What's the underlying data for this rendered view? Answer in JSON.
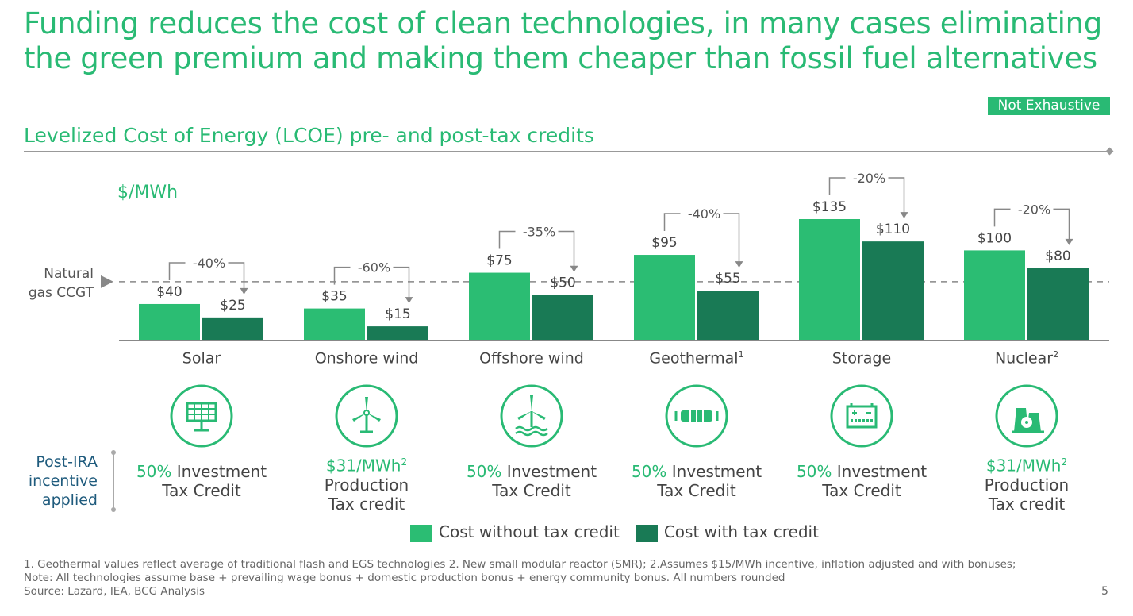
{
  "title": "Funding reduces the cost of clean technologies, in many cases eliminating the green premium and making them cheaper than fossil fuel alternatives",
  "badge": "Not Exhaustive",
  "subtitle": "Levelized Cost of Energy (LCOE) pre- and post-tax credits",
  "colors": {
    "accent": "#29ba74",
    "without": "#2bbd73",
    "with": "#197a55",
    "postira": "#1f5b7d"
  },
  "chart_data": {
    "type": "bar",
    "unit_label": "$/MWh",
    "categories": [
      "Solar",
      "Onshore wind",
      "Offshore wind",
      "Geothermal",
      "Storage",
      "Nuclear"
    ],
    "category_footnotes": [
      "",
      "",
      "",
      "1",
      "",
      "2"
    ],
    "series": [
      {
        "name": "Cost without tax credit",
        "values": [
          40,
          35,
          75,
          95,
          135,
          100
        ]
      },
      {
        "name": "Cost with tax credit",
        "values": [
          25,
          15,
          50,
          55,
          110,
          80
        ]
      }
    ],
    "value_labels": [
      [
        "$40",
        "$35",
        "$75",
        "$95",
        "$135",
        "$100"
      ],
      [
        "$25",
        "$15",
        "$50",
        "$55",
        "$110",
        "$80"
      ]
    ],
    "change_labels": [
      "-40%",
      "-60%",
      "-35%",
      "-40%",
      "-20%",
      "-20%"
    ],
    "reference_line": {
      "label_line1": "Natural",
      "label_line2": "gas CCGT",
      "value": 65
    },
    "ylim": [
      0,
      150
    ],
    "legend_position": "bottom",
    "grid": false
  },
  "incentive_label": [
    "Post-IRA",
    "incentive",
    "applied"
  ],
  "incentives": [
    {
      "icon": "solar-panel-icon",
      "highlight": "50%",
      "line1": " Investment",
      "line2": "Tax Credit",
      "line3": ""
    },
    {
      "icon": "wind-turbine-icon",
      "highlight": "$31/MWh",
      "sup": "2",
      "line1": "",
      "line2": "Production",
      "line3": "Tax credit"
    },
    {
      "icon": "offshore-wind-icon",
      "highlight": "50%",
      "line1": " Investment",
      "line2": "Tax Credit",
      "line3": ""
    },
    {
      "icon": "geothermal-icon",
      "highlight": "50%",
      "line1": " Investment",
      "line2": "Tax Credit",
      "line3": ""
    },
    {
      "icon": "battery-icon",
      "highlight": "50%",
      "line1": " Investment",
      "line2": "Tax Credit",
      "line3": ""
    },
    {
      "icon": "nuclear-plant-icon",
      "highlight": "$31/MWh",
      "sup": "2",
      "line1": "",
      "line2": "Production",
      "line3": "Tax credit"
    }
  ],
  "footnotes": [
    "1. Geothermal values reflect average of traditional flash and EGS technologies 2. New small modular reactor (SMR);  2.Assumes $15/MWh incentive, inflation adjusted and with bonuses;",
    "Note: All technologies assume base + prevailing wage bonus + domestic production bonus + energy community bonus. All numbers rounded",
    "Source: Lazard, IEA, BCG Analysis"
  ],
  "page_number": "5"
}
